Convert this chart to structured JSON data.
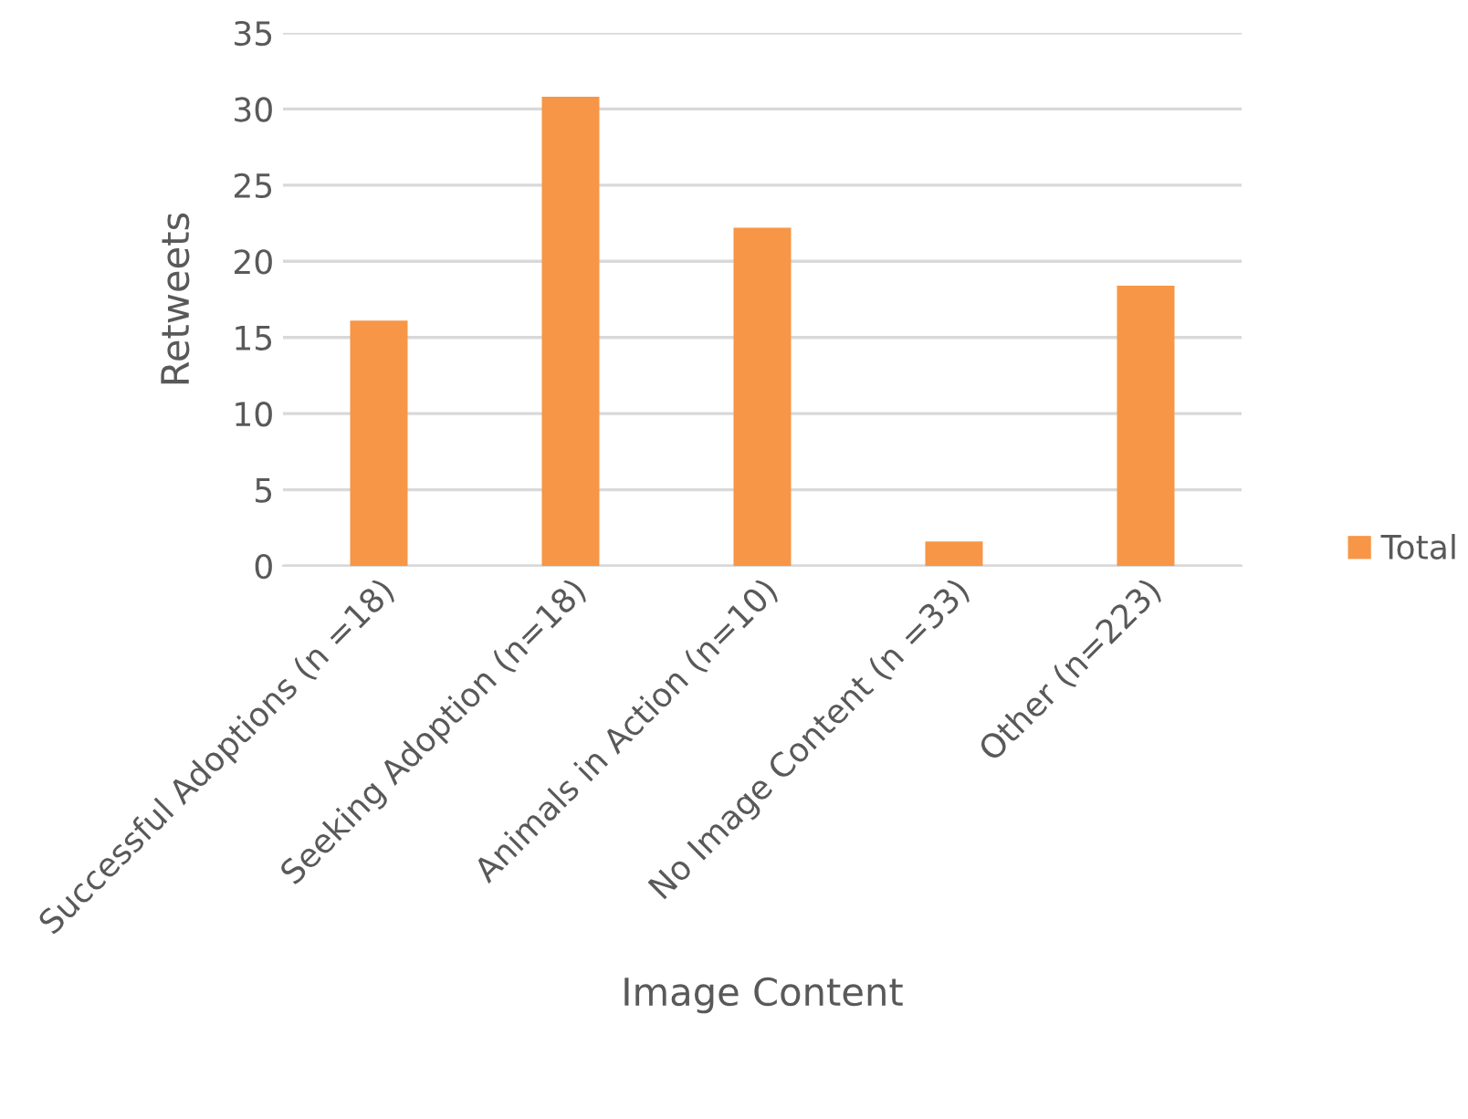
{
  "chart_data": {
    "type": "bar",
    "xlabel": "Image Content",
    "ylabel": "Retweets",
    "categories": [
      "Successful Adoptions (n =18)",
      "Seeking Adoption (n=18)",
      "Animals in Action (n=10)",
      "No Image Content (n =33)",
      "Other (n=223)"
    ],
    "series": [
      {
        "name": "Total",
        "color": "#f79646",
        "values": [
          16.1,
          30.8,
          22.2,
          1.6,
          18.4
        ]
      }
    ],
    "ylim": [
      0,
      35
    ],
    "yticks": [
      0,
      5,
      10,
      15,
      20,
      25,
      30,
      35
    ],
    "grid": "y",
    "legend": "right"
  }
}
